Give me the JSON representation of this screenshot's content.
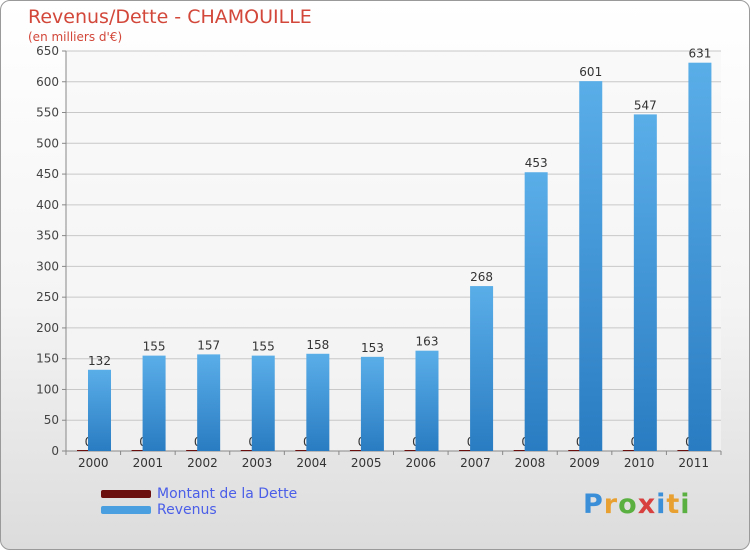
{
  "title": "Revenus/Dette - CHAMOUILLE",
  "subtitle": "(en milliers d'€)",
  "brand": "Proxiti",
  "colors": {
    "title": "#d2473a",
    "dette": "#6b0f0f",
    "revenus": "#4a9fe0",
    "legend_text": "#4a5ee8"
  },
  "chart_data": {
    "type": "bar",
    "title": "Revenus/Dette - CHAMOUILLE",
    "ylabel": "(en milliers d'€)",
    "xlabel": "",
    "ylim": [
      0,
      650
    ],
    "yticks": [
      0,
      50,
      100,
      150,
      200,
      250,
      300,
      350,
      400,
      450,
      500,
      550,
      600,
      650
    ],
    "categories": [
      "2000",
      "2001",
      "2002",
      "2003",
      "2004",
      "2005",
      "2006",
      "2007",
      "2008",
      "2009",
      "2010",
      "2011"
    ],
    "series": [
      {
        "name": "Montant de la Dette",
        "values": [
          0,
          0,
          0,
          0,
          0,
          0,
          0,
          0,
          0,
          0,
          0,
          0
        ]
      },
      {
        "name": "Revenus",
        "values": [
          132,
          155,
          157,
          155,
          158,
          153,
          163,
          268,
          453,
          601,
          547,
          631
        ]
      }
    ],
    "legend_position": "bottom-left"
  }
}
